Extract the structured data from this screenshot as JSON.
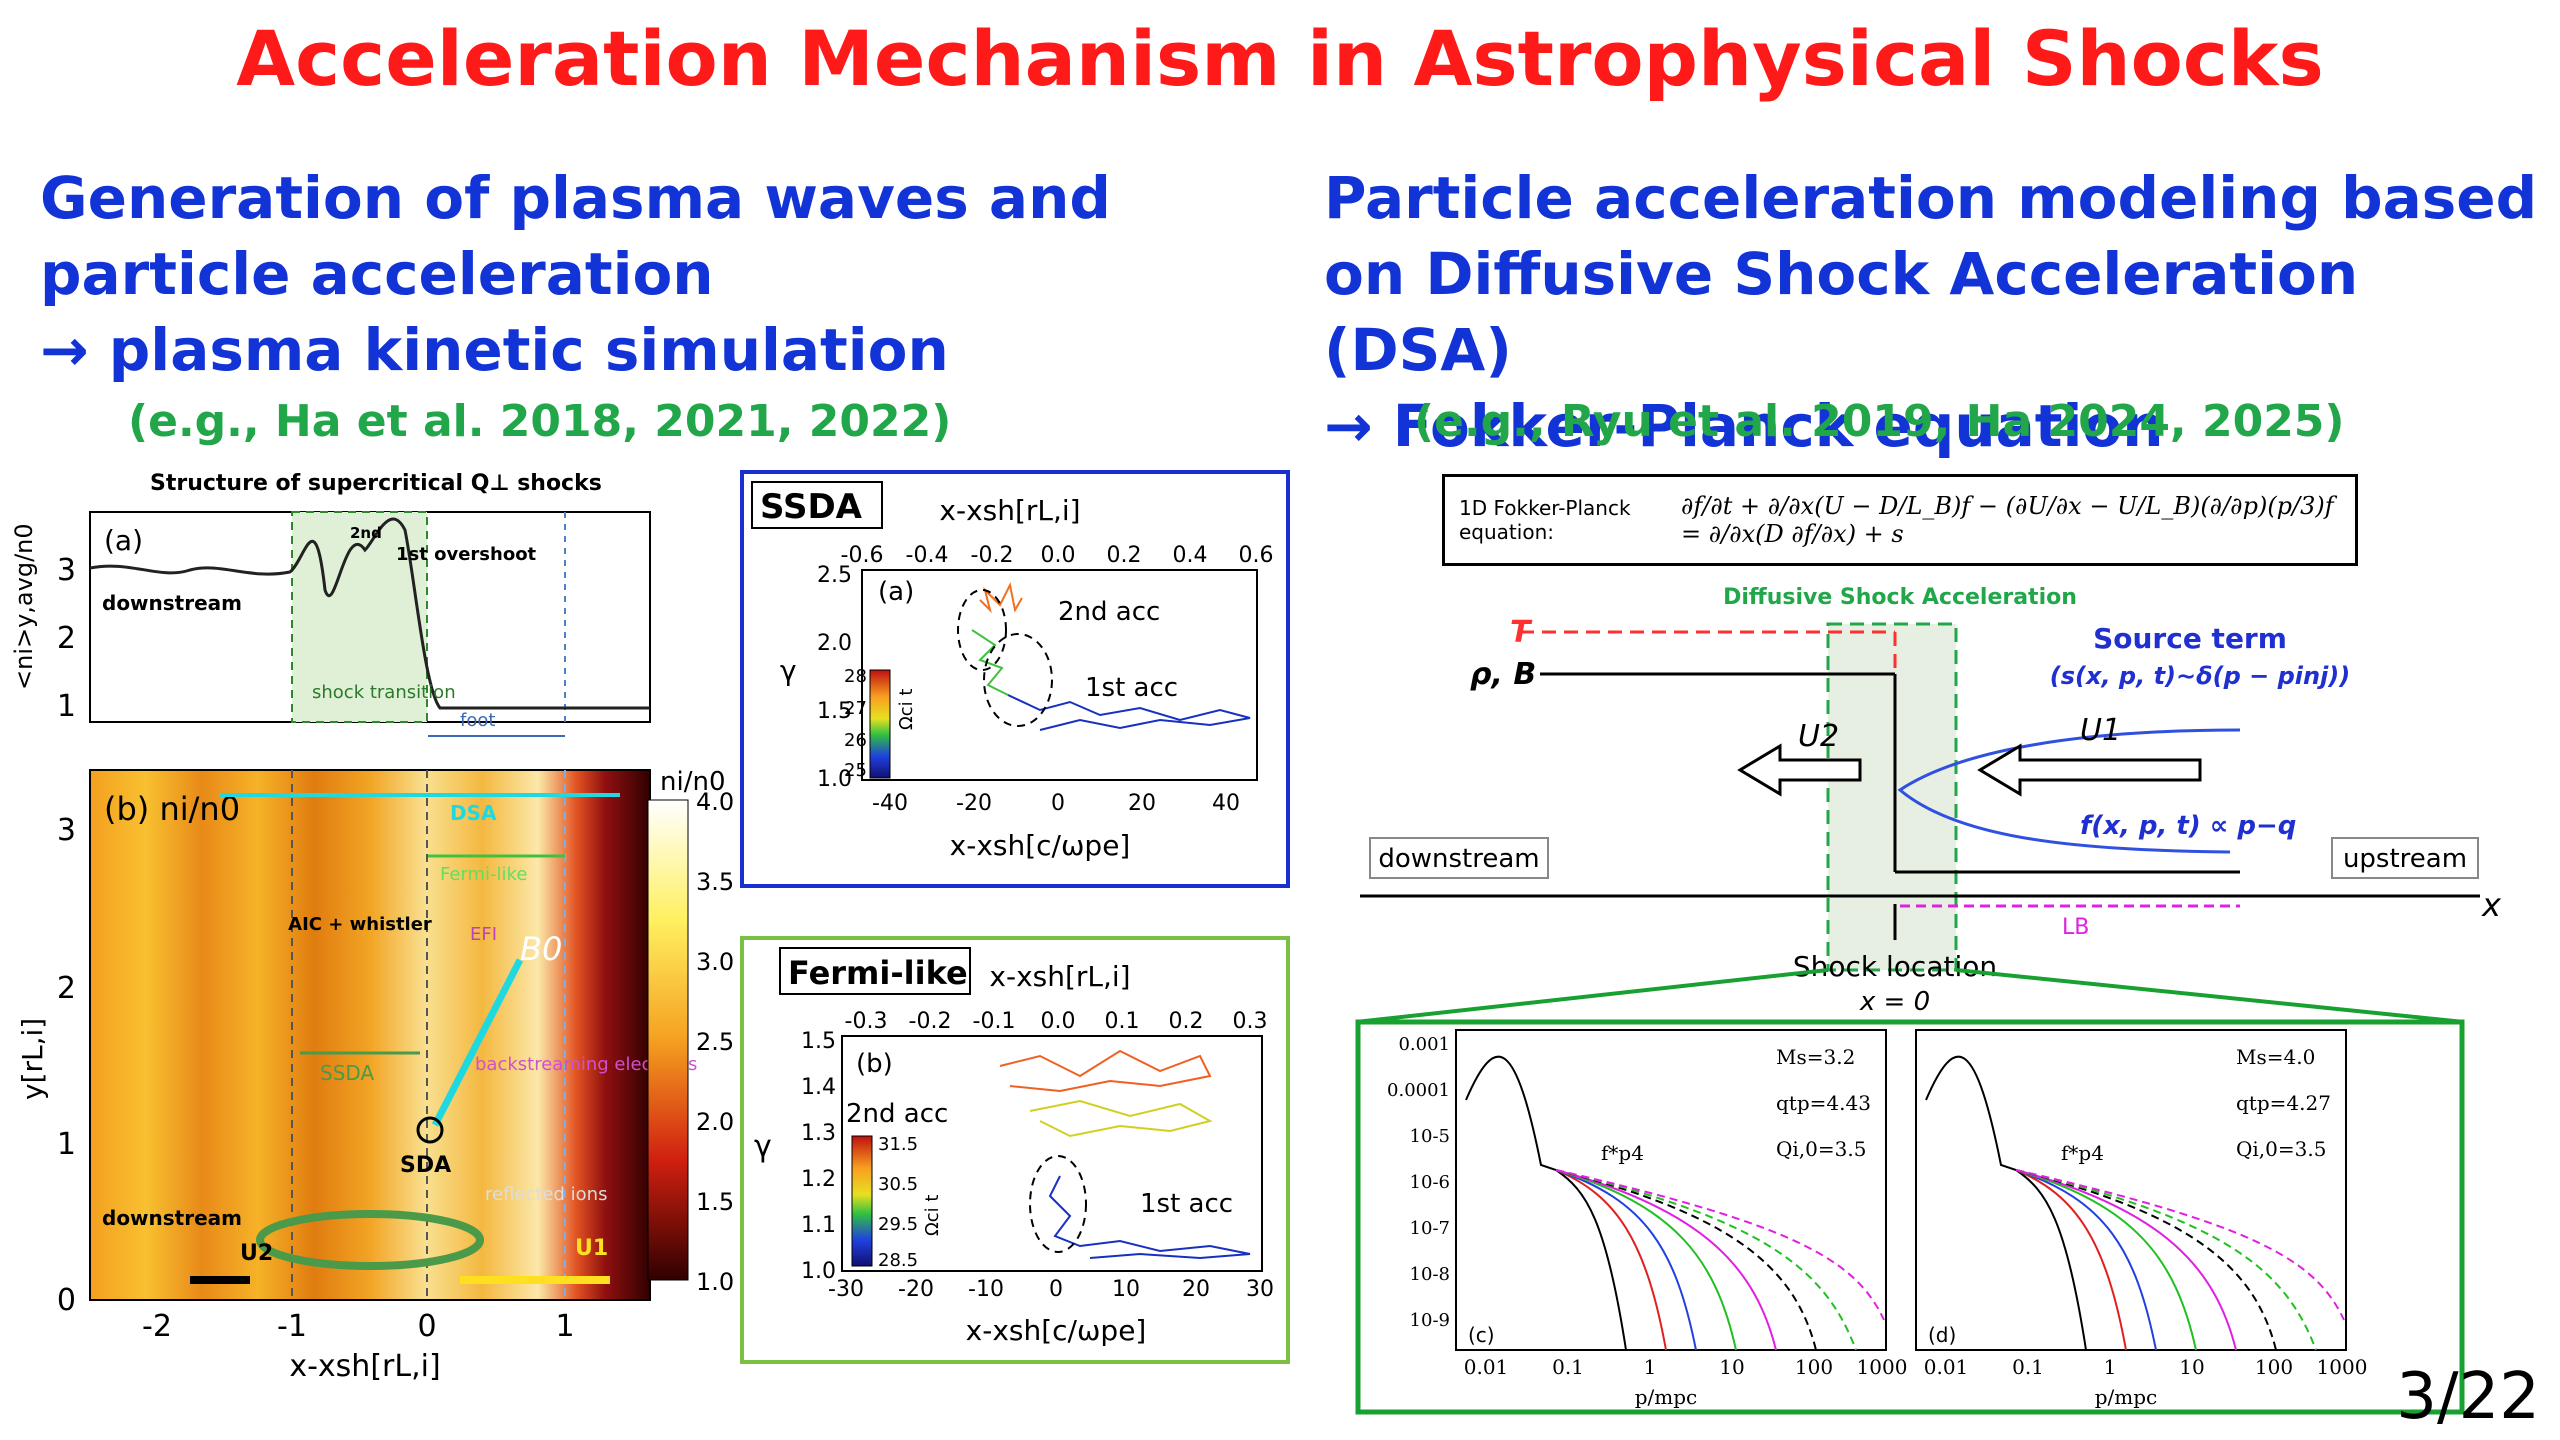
{
  "title": "Acceleration Mechanism in Astrophysical Shocks",
  "left": {
    "heading_lines": [
      "Generation of plasma waves and",
      "particle acceleration",
      "→ plasma kinetic simulation"
    ],
    "citation": "(e.g., Ha et al. 2018, 2021, 2022)",
    "fig_main": {
      "title": "Structure of supercritical Q⊥ shocks",
      "a_label": "(a)",
      "a_ylabel": "<ni>y,avg/n0",
      "a_yticks": [
        "3",
        "2",
        "1"
      ],
      "a_overshoot2": "2nd",
      "a_overshoot1": "1st overshoot",
      "a_downstream": "downstream",
      "a_shock_transition": "shock transition",
      "a_foot": "foot",
      "b_label": "(b) ni/n0",
      "b_ylabel": "y[rL,i]",
      "b_yticks": [
        "3",
        "2",
        "1",
        "0"
      ],
      "xticks": [
        "-2",
        "-1",
        "0",
        "1"
      ],
      "xlabel": "x-xsh[rL,i]",
      "cbar_label": "ni/n0",
      "cbar_ticks": [
        "4.0",
        "3.5",
        "3.0",
        "2.5",
        "2.0",
        "1.5",
        "1.0"
      ],
      "dsa": "DSA",
      "fermi_like": "Fermi-like",
      "aic": "AIC + whistler",
      "efi": "EFI",
      "b0": "B0",
      "ssda": "SSDA",
      "sda": "SDA",
      "backstreaming": "backstreaming electrons",
      "reflected": "reflected ions",
      "downstream": "downstream",
      "u2": "U2",
      "u1": "U1"
    },
    "fig_ssda": {
      "tag": "SSDA",
      "panel": "(a)",
      "top_label": "x-xsh[rL,i]",
      "top_ticks": [
        "-0.6",
        "-0.4",
        "-0.2",
        "0.0",
        "0.2",
        "0.4",
        "0.6"
      ],
      "yticks": [
        "2.5",
        "2.0",
        "1.5",
        "1.0"
      ],
      "ylabel": "γ",
      "bottom_ticks": [
        "-40",
        "-20",
        "0",
        "20",
        "40"
      ],
      "bottom_label": "x-xsh[c/ωpe]",
      "cbar_ticks": [
        "28",
        "27",
        "26",
        "25"
      ],
      "cbar_label": "Ωci t",
      "acc2": "2nd acc",
      "acc1": "1st acc"
    },
    "fig_fermi": {
      "tag": "Fermi-like",
      "panel": "(b)",
      "top_label": "x-xsh[rL,i]",
      "top_ticks": [
        "-0.3",
        "-0.2",
        "-0.1",
        "0.0",
        "0.1",
        "0.2",
        "0.3"
      ],
      "yticks": [
        "1.5",
        "1.4",
        "1.3",
        "1.2",
        "1.1",
        "1.0"
      ],
      "ylabel": "γ",
      "bottom_ticks": [
        "-30",
        "-20",
        "-10",
        "0",
        "10",
        "20",
        "30"
      ],
      "bottom_label": "x-xsh[c/ωpe]",
      "cbar_ticks": [
        "31.5",
        "30.5",
        "29.5",
        "28.5"
      ],
      "cbar_label": "Ωci t",
      "acc2": "2nd acc",
      "acc1": "1st acc"
    }
  },
  "right": {
    "heading_lines": [
      "Particle acceleration modeling based",
      "on Diffusive Shock Acceleration (DSA)",
      "→ Fokker-Planck equation"
    ],
    "citation": "(e.g., Ryu et al. 2019, Ha 2024, 2025)",
    "equation_label": "1D Fokker-Planck equation:",
    "equation": "∂f/∂t + ∂/∂x(U − D/L_B)f − (∂U/∂x − U/L_B)(∂/∂p)(p/3)f = ∂/∂x(D ∂f/∂x) + s",
    "diagram": {
      "dsa_label": "Diffusive Shock Acceleration",
      "T": "T",
      "rhoB": "ρ, B",
      "source_term": "Source term",
      "source_expr": "(s(x, p, t)∼δ(p − pinj))",
      "u2": "U2",
      "u1": "U1",
      "f_expr": "f(x, p, t) ∝ p−q",
      "downstream": "downstream",
      "upstream": "upstream",
      "x_axis": "x",
      "LB": "LB",
      "shock_location": "Shock location",
      "x0": "x = 0"
    },
    "spectra": [
      {
        "panel": "(c)",
        "ylabel": "f*p4",
        "Ms": "Ms=3.2",
        "qtp": "qtp=4.43",
        "Qi0": "Qi,0=3.5"
      },
      {
        "panel": "(d)",
        "ylabel": "f*p4",
        "Ms": "Ms=4.0",
        "qtp": "qtp=4.27",
        "Qi0": "Qi,0=3.5"
      }
    ],
    "spec_yticks": [
      "0.001",
      "0.0001",
      "10-5",
      "10-6",
      "10-7",
      "10-8",
      "10-9"
    ],
    "spec_xticks": [
      "0.01",
      "0.1",
      "1",
      "10",
      "100",
      "1000"
    ],
    "spec_xlabel": "p/mpc"
  },
  "page_number": "3/22",
  "colors": {
    "title": "#ff1a1a",
    "heading": "#1233d6",
    "citation": "#22a64a",
    "ssda_frame": "#1a2fd0",
    "fermi_frame": "#7ac143",
    "zoom_frame": "#18a030"
  }
}
